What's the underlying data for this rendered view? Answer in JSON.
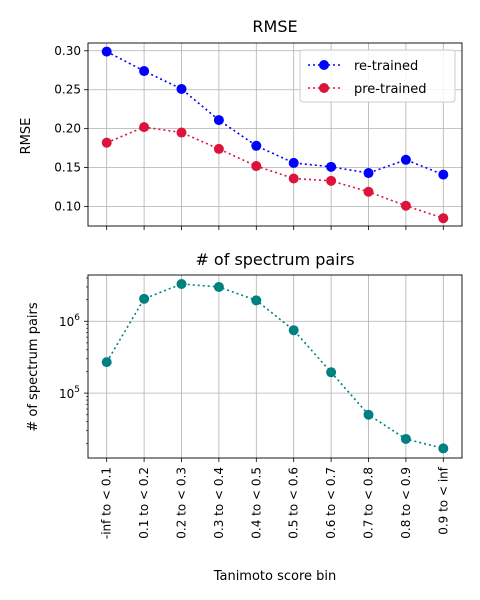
{
  "chart_data": [
    {
      "type": "line",
      "title": "RMSE",
      "xlabel": "",
      "ylabel": "RMSE",
      "categories": [
        "-inf to < 0.1",
        "0.1 to < 0.2",
        "0.2 to < 0.3",
        "0.3 to < 0.4",
        "0.4 to < 0.5",
        "0.5 to < 0.6",
        "0.6 to < 0.7",
        "0.7 to < 0.8",
        "0.8 to < 0.9",
        "0.9 to < inf"
      ],
      "ylim": [
        0.075,
        0.31
      ],
      "yticks": [
        "0.10",
        "0.15",
        "0.20",
        "0.25",
        "0.30"
      ],
      "ytick_values": [
        0.1,
        0.15,
        0.2,
        0.25,
        0.3
      ],
      "grid": true,
      "legend_position": "top-right",
      "series": [
        {
          "name": "re-trained",
          "color": "#0000ff",
          "values": [
            0.299,
            0.274,
            0.251,
            0.211,
            0.178,
            0.156,
            0.151,
            0.143,
            0.16,
            0.141
          ]
        },
        {
          "name": "pre-trained",
          "color": "#dc143c",
          "values": [
            0.182,
            0.202,
            0.195,
            0.174,
            0.152,
            0.136,
            0.133,
            0.119,
            0.101,
            0.085
          ]
        }
      ]
    },
    {
      "type": "line",
      "title": "# of spectrum pairs",
      "xlabel": "Tanimoto score bin",
      "ylabel": "# of spectrum pairs",
      "yscale": "log",
      "categories": [
        "-inf to < 0.1",
        "0.1 to < 0.2",
        "0.2 to < 0.3",
        "0.3 to < 0.4",
        "0.4 to < 0.5",
        "0.5 to < 0.6",
        "0.6 to < 0.7",
        "0.7 to < 0.8",
        "0.8 to < 0.9",
        "0.9 to < inf"
      ],
      "ylim": [
        12500,
        4400000
      ],
      "ytick_values": [
        100000,
        1000000
      ],
      "grid": true,
      "series": [
        {
          "name": "",
          "color": "#008080",
          "values": [
            270000,
            2050000,
            3300000,
            3000000,
            1950000,
            750000,
            195000,
            50000,
            23000,
            17000
          ]
        }
      ]
    }
  ]
}
